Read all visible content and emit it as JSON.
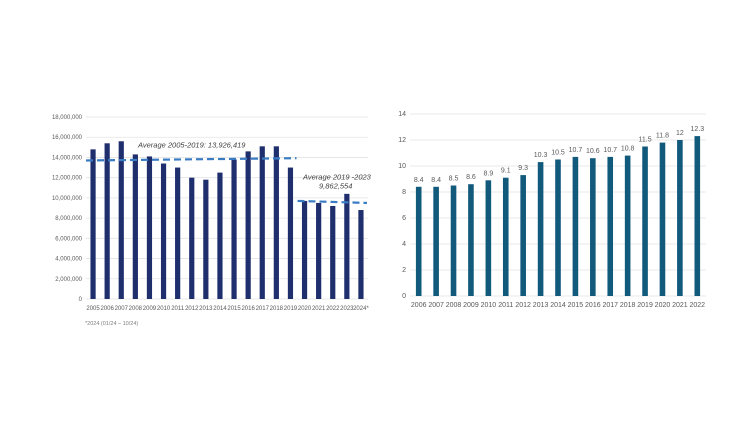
{
  "colors": {
    "left_bar": "#1f2f6e",
    "right_bar": "#125a7c",
    "avg_line": "#3a7cc4",
    "grid": "#e3e3e3",
    "text": "#595959"
  },
  "chart_data": [
    {
      "type": "bar",
      "title": "",
      "xlabel": "",
      "ylabel": "",
      "ylim": [
        0,
        18000000
      ],
      "yticks": [
        0,
        2000000,
        4000000,
        6000000,
        8000000,
        10000000,
        12000000,
        14000000,
        16000000,
        18000000
      ],
      "ytick_labels": [
        "0",
        "2,000,000",
        "4,000,000",
        "6,000,000",
        "8,000,000",
        "10,000,000",
        "12,000,000",
        "14,000,000",
        "16,000,000",
        "18,000,000"
      ],
      "categories": [
        "2005",
        "2006",
        "2007",
        "2008",
        "2009",
        "2010",
        "2011",
        "2012",
        "2013",
        "2014",
        "2015",
        "2016",
        "2017",
        "2018",
        "2019",
        "2020",
        "2021",
        "2022",
        "2023",
        "2024*"
      ],
      "values": [
        14800000,
        15400000,
        15600000,
        14300000,
        14100000,
        13400000,
        13000000,
        12000000,
        11800000,
        12500000,
        13800000,
        14600000,
        15100000,
        15100000,
        13000000,
        9700000,
        9500000,
        9200000,
        10400000,
        8800000
      ],
      "reference_lines": [
        {
          "label": "Average 2005-2019: 13,926,419",
          "x_start": "2005",
          "x_end": "2019",
          "y_start": 13700000,
          "y_end": 13926419
        },
        {
          "label_line1": "Average 2019 -2023",
          "label_line2": "9,862,554",
          "x_start": "2020",
          "x_end": "2024*",
          "y_start": 9700000,
          "y_end": 9500000
        }
      ],
      "footnote": "*2024 (01/24 – 10/24)",
      "grid": true
    },
    {
      "type": "bar",
      "title": "",
      "xlabel": "",
      "ylabel": "",
      "ylim": [
        0,
        14
      ],
      "yticks": [
        0,
        2,
        4,
        6,
        8,
        10,
        12,
        14
      ],
      "ytick_labels": [
        "0",
        "2",
        "4",
        "6",
        "8",
        "10",
        "12",
        "14"
      ],
      "categories": [
        "2006",
        "2007",
        "2008",
        "2009",
        "2010",
        "2011",
        "2012",
        "2013",
        "2014",
        "2015",
        "2016",
        "2017",
        "2018",
        "2019",
        "2020",
        "2021",
        "2022"
      ],
      "values": [
        8.4,
        8.4,
        8.5,
        8.6,
        8.9,
        9.1,
        9.3,
        10.3,
        10.5,
        10.7,
        10.6,
        10.7,
        10.8,
        11.5,
        11.8,
        12,
        12.3
      ],
      "value_labels": [
        "8.4",
        "8.4",
        "8.5",
        "8.6",
        "8.9",
        "9.1",
        "9.3",
        "10.3",
        "10.5",
        "10.7",
        "10.6",
        "10.7",
        "10.8",
        "11.5",
        "11.8",
        "12",
        "12.3"
      ],
      "grid": true
    }
  ]
}
